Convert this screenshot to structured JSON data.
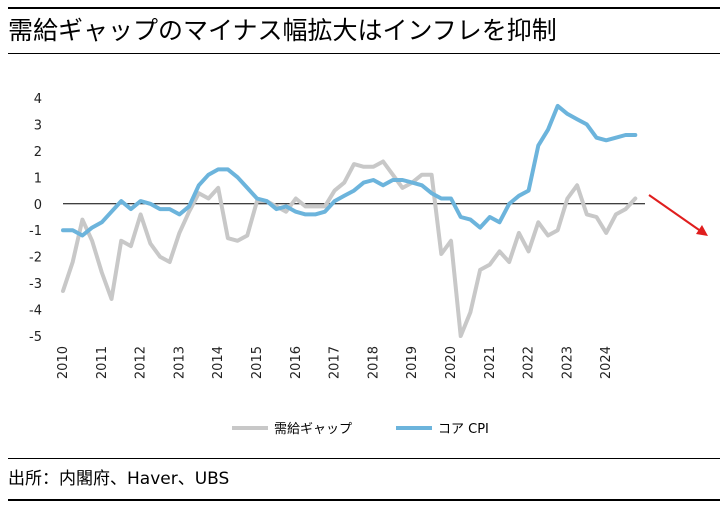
{
  "title": "需給ギャップのマイナス幅拡大はインフレを抑制",
  "source": "出所：内閣府、Haver、UBS",
  "colors": {
    "gap": "#c8c8c8",
    "cpi": "#6cb4dc",
    "arrow": "#e01e1e",
    "axis": "#000000"
  },
  "chart_data": {
    "type": "line",
    "title": "需給ギャップのマイナス幅拡大はインフレを抑制",
    "xlabel": "",
    "ylabel": "",
    "ylim": [
      -5,
      4
    ],
    "yticks": [
      "4",
      "3",
      "2",
      "1",
      "0",
      "-1",
      "-2",
      "-3",
      "-4",
      "-5"
    ],
    "xticks": [
      "2010",
      "2011",
      "2012",
      "2013",
      "2014",
      "2015",
      "2016",
      "2017",
      "2018",
      "2019",
      "2020",
      "2021",
      "2022",
      "2023",
      "2024"
    ],
    "xlim": [
      2010,
      2025
    ],
    "legend_position": "bottom",
    "series": [
      {
        "name": "需給ギャップ",
        "x": [
          2010.0,
          2010.25,
          2010.5,
          2010.75,
          2011.0,
          2011.25,
          2011.5,
          2011.75,
          2012.0,
          2012.25,
          2012.5,
          2012.75,
          2013.0,
          2013.25,
          2013.5,
          2013.75,
          2014.0,
          2014.25,
          2014.5,
          2014.75,
          2015.0,
          2015.25,
          2015.5,
          2015.75,
          2016.0,
          2016.25,
          2016.5,
          2016.75,
          2017.0,
          2017.25,
          2017.5,
          2017.75,
          2018.0,
          2018.25,
          2018.5,
          2018.75,
          2019.0,
          2019.25,
          2019.5,
          2019.75,
          2020.0,
          2020.25,
          2020.5,
          2020.75,
          2021.0,
          2021.25,
          2021.5,
          2021.75,
          2022.0,
          2022.25,
          2022.5,
          2022.75,
          2023.0,
          2023.25,
          2023.5,
          2023.75,
          2024.0,
          2024.25,
          2024.5,
          2024.75
        ],
        "values": [
          -3.3,
          -2.2,
          -0.6,
          -1.4,
          -2.6,
          -3.6,
          -1.4,
          -1.6,
          -0.4,
          -1.5,
          -2.0,
          -2.2,
          -1.1,
          -0.3,
          0.4,
          0.2,
          0.6,
          -1.3,
          -1.4,
          -1.2,
          0.1,
          0.1,
          -0.1,
          -0.3,
          0.2,
          -0.1,
          -0.1,
          -0.1,
          0.5,
          0.8,
          1.5,
          1.4,
          1.4,
          1.6,
          1.1,
          0.6,
          0.8,
          1.1,
          1.1,
          -1.9,
          -1.4,
          -5.0,
          -4.1,
          -2.5,
          -2.3,
          -1.8,
          -2.2,
          -1.1,
          -1.8,
          -0.7,
          -1.2,
          -1.0,
          0.2,
          0.7,
          -0.4,
          -0.5,
          -1.1,
          -0.4,
          -0.2,
          0.2
        ]
      },
      {
        "name": "コア CPI",
        "x": [
          2010.0,
          2010.25,
          2010.5,
          2010.75,
          2011.0,
          2011.25,
          2011.5,
          2011.75,
          2012.0,
          2012.25,
          2012.5,
          2012.75,
          2013.0,
          2013.25,
          2013.5,
          2013.75,
          2014.0,
          2014.25,
          2014.5,
          2014.75,
          2015.0,
          2015.25,
          2015.5,
          2015.75,
          2016.0,
          2016.25,
          2016.5,
          2016.75,
          2017.0,
          2017.25,
          2017.5,
          2017.75,
          2018.0,
          2018.25,
          2018.5,
          2018.75,
          2019.0,
          2019.25,
          2019.5,
          2019.75,
          2020.0,
          2020.25,
          2020.5,
          2020.75,
          2021.0,
          2021.25,
          2021.5,
          2021.75,
          2022.0,
          2022.25,
          2022.5,
          2022.75,
          2023.0,
          2023.25,
          2023.5,
          2023.75,
          2024.0,
          2024.25,
          2024.5,
          2024.75
        ],
        "values": [
          -1.0,
          -1.0,
          -1.2,
          -0.9,
          -0.7,
          -0.3,
          0.1,
          -0.2,
          0.1,
          0.0,
          -0.2,
          -0.2,
          -0.4,
          -0.1,
          0.7,
          1.1,
          1.3,
          1.3,
          1.0,
          0.6,
          0.2,
          0.1,
          -0.2,
          -0.1,
          -0.3,
          -0.4,
          -0.4,
          -0.3,
          0.1,
          0.3,
          0.5,
          0.8,
          0.9,
          0.7,
          0.9,
          0.9,
          0.8,
          0.7,
          0.4,
          0.2,
          0.2,
          -0.5,
          -0.6,
          -0.9,
          -0.5,
          -0.7,
          0.0,
          0.3,
          0.5,
          2.2,
          2.8,
          3.7,
          3.4,
          3.2,
          3.0,
          2.5,
          2.4,
          2.5,
          2.6,
          2.6
        ]
      }
    ],
    "annotation": {
      "type": "arrow",
      "direction": "down-right"
    }
  }
}
